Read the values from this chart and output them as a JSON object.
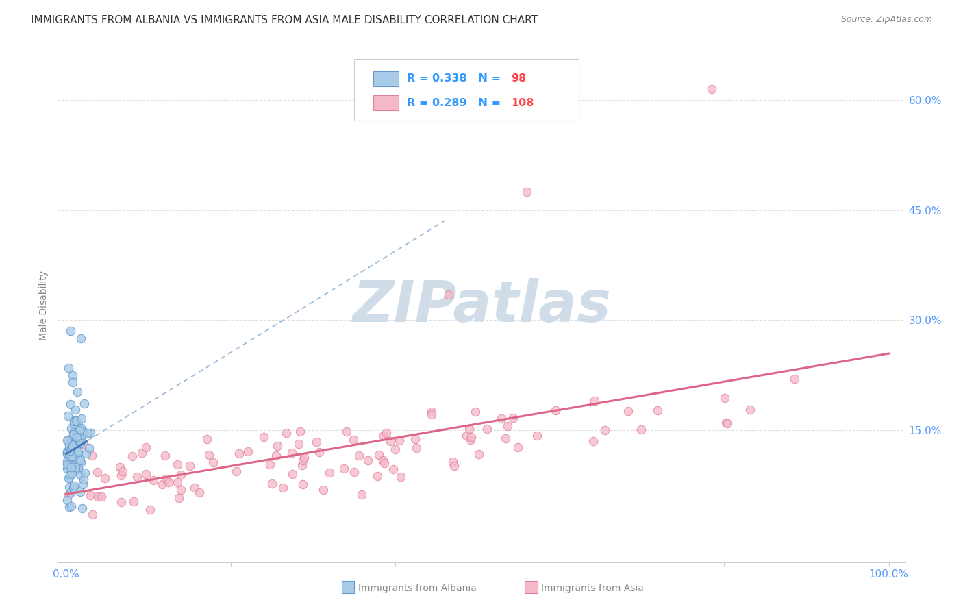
{
  "title": "IMMIGRANTS FROM ALBANIA VS IMMIGRANTS FROM ASIA MALE DISABILITY CORRELATION CHART",
  "source": "Source: ZipAtlas.com",
  "ylabel": "Male Disability",
  "yticks": [
    0.0,
    0.15,
    0.3,
    0.45,
    0.6
  ],
  "xlim": [
    -0.01,
    1.02
  ],
  "ylim": [
    -0.03,
    0.67
  ],
  "albania_R": 0.338,
  "albania_N": 98,
  "asia_R": 0.289,
  "asia_N": 108,
  "albania_fill": "#a8cce8",
  "albania_edge": "#6699cc",
  "asia_fill": "#f5b8c8",
  "asia_edge": "#e08098",
  "trendline_albania_color": "#4477bb",
  "trendline_asia_color": "#dd6688",
  "dashed_line_color": "#99bbdd",
  "watermark_color": "#d0dde8",
  "background_color": "#ffffff",
  "legend_text_color": "#3399ff",
  "legend_N_color": "#ff4444",
  "right_tick_color": "#5599ff",
  "grid_color": "#e0e0e0",
  "bottom_label_color": "#888888",
  "title_color": "#333333",
  "source_color": "#888888",
  "ylabel_color": "#888888"
}
